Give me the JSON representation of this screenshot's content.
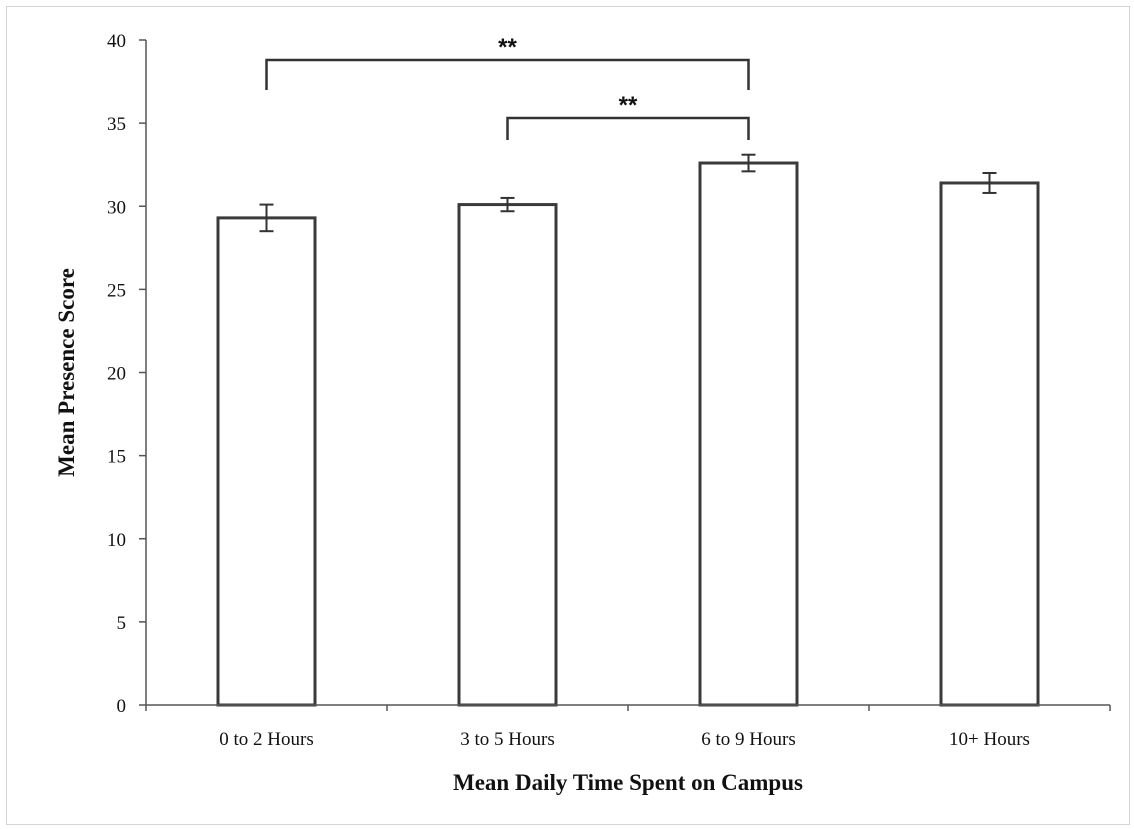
{
  "chart_data": {
    "type": "bar",
    "categories": [
      "0 to 2 Hours",
      "3 to 5 Hours",
      "6 to 9 Hours",
      "10+ Hours"
    ],
    "values": [
      29.3,
      30.1,
      32.6,
      31.4
    ],
    "error": [
      0.8,
      0.4,
      0.5,
      0.6
    ],
    "xlabel": "Mean Daily Time Spent on Campus",
    "ylabel": "Mean Presence Score",
    "ylim": [
      0,
      40
    ],
    "yticks": [
      0,
      5,
      10,
      15,
      20,
      25,
      30,
      35,
      40
    ],
    "grid": false,
    "legend": "none",
    "significance": [
      {
        "from": 0,
        "to": 2,
        "label": "**"
      },
      {
        "from": 1,
        "to": 2,
        "label": "**"
      }
    ],
    "colors": {
      "bar_fill": "#ffffff",
      "bar_stroke": "#3a3a3a",
      "axis": "#555555",
      "text": "#111111"
    }
  }
}
